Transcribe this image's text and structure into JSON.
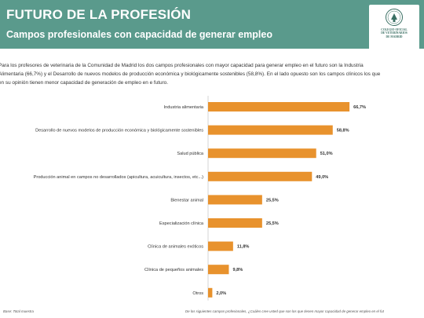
{
  "header": {
    "title": "FUTURO DE LA PROFESIÓN",
    "subtitle": "Campos profesionales con capacidad de generar empleo",
    "logo_text": [
      "COLEGIO OFICIAL",
      "DE VETERINARIOS",
      "DE MADRID"
    ],
    "color": "#5a9a8c"
  },
  "intro": {
    "lines": [
      "Para los profesores de veterinaria de la Comunidad de Madrid los dos campos profesionales con mayor capacidad para generar empleo en el futuro son la Industria",
      "Alimentaria (66,7%) y el Desarrollo de nuevos modelos de producción económica y biológicamente sostenibles (58,8%). En el lado opuesto son los campos clínicos los que",
      "en su opinión tienen menor capacidad de generación de empleo en e futuro."
    ]
  },
  "chart_data": {
    "type": "bar",
    "orientation": "horizontal",
    "bar_color": "#e8922d",
    "xlim": [
      0,
      100
    ],
    "categories": [
      "Industria alimentaria",
      "Desarrollo de nuevos modelos de producción económica y biológicamente sostenibles",
      "Salud pública",
      "Producción animal en campos no desarrollados (apicultura, acuicultura, insectos, etc...)",
      "Bienestar animal",
      "Especialización clínica",
      "Clínica de animales exóticos",
      "Clínica de pequeños animales",
      "Otros"
    ],
    "values": [
      66.7,
      58.8,
      51.0,
      49.0,
      25.5,
      25.5,
      11.8,
      9.8,
      2.0
    ],
    "value_labels": [
      "66,7%",
      "58,8%",
      "51,0%",
      "49,0%",
      "25,5%",
      "25,5%",
      "11,8%",
      "9,8%",
      "2,0%"
    ]
  },
  "footer": {
    "base": "Base: Total muestra",
    "question": "De los siguientes campos profesionales, ¿Cuáles cree usted que son los que tienen mayor capacidad de generar empleo en el fut"
  }
}
